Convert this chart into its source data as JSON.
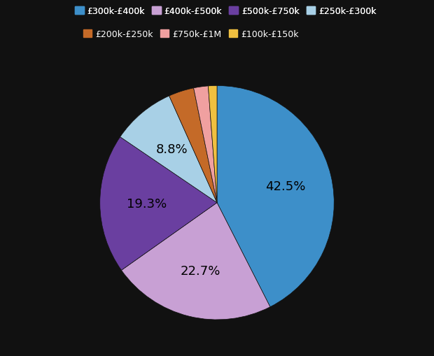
{
  "labels": [
    "£300k-£400k",
    "£400k-£500k",
    "£500k-£750k",
    "£250k-£300k",
    "£200k-£250k",
    "£750k-£1M",
    "£100k-£150k"
  ],
  "values": [
    42.5,
    22.7,
    19.3,
    8.8,
    3.5,
    2.0,
    1.2
  ],
  "colors": [
    "#3d8fc9",
    "#c8a0d4",
    "#6a3fa0",
    "#a8d0e6",
    "#c46a28",
    "#f0a0a0",
    "#f0c040"
  ],
  "percentages": [
    "42.5%",
    "22.7%",
    "19.3%",
    "8.8%",
    "",
    "",
    ""
  ],
  "background_color": "#111111",
  "text_color": "#ffffff",
  "startangle": 90,
  "legend_row1": [
    0,
    1,
    2,
    3
  ],
  "legend_row2": [
    4,
    5,
    6
  ]
}
